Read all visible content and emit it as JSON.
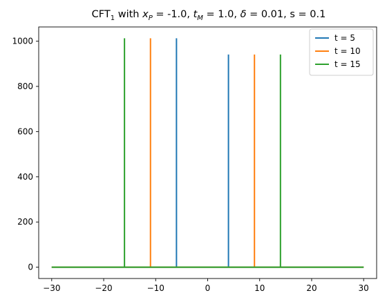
{
  "chart_data": {
    "type": "line",
    "title": {
      "prefix": "CFT",
      "prefix_sub": "1",
      "part1": " with ",
      "var1": "x",
      "var1_sub": "P",
      "part2": " = -1.0, ",
      "var2": "t",
      "var2_sub": "M",
      "part3": " = 1.0, ",
      "var3": "δ",
      "part4": " = 0.01, s = 0.1"
    },
    "xlabel": "",
    "ylabel": "",
    "xlim": [
      -32.5,
      32.5
    ],
    "ylim": [
      -50,
      1063
    ],
    "xticks": [
      -30,
      -20,
      -10,
      0,
      10,
      20,
      30
    ],
    "yticks": [
      0,
      200,
      400,
      600,
      800,
      1000
    ],
    "grid": false,
    "legend_position": "top-right",
    "baseline_range": [
      -30,
      30
    ],
    "series": [
      {
        "name": "t = 5",
        "color": "#1f77b4",
        "spikes": [
          {
            "x": -6,
            "y": 1013
          },
          {
            "x": 4,
            "y": 941
          }
        ]
      },
      {
        "name": "t = 10",
        "color": "#ff7f0e",
        "spikes": [
          {
            "x": -11,
            "y": 1013
          },
          {
            "x": 9,
            "y": 941
          }
        ]
      },
      {
        "name": "t = 15",
        "color": "#2ca02c",
        "spikes": [
          {
            "x": -16,
            "y": 1013
          },
          {
            "x": 14,
            "y": 941
          }
        ]
      }
    ]
  }
}
